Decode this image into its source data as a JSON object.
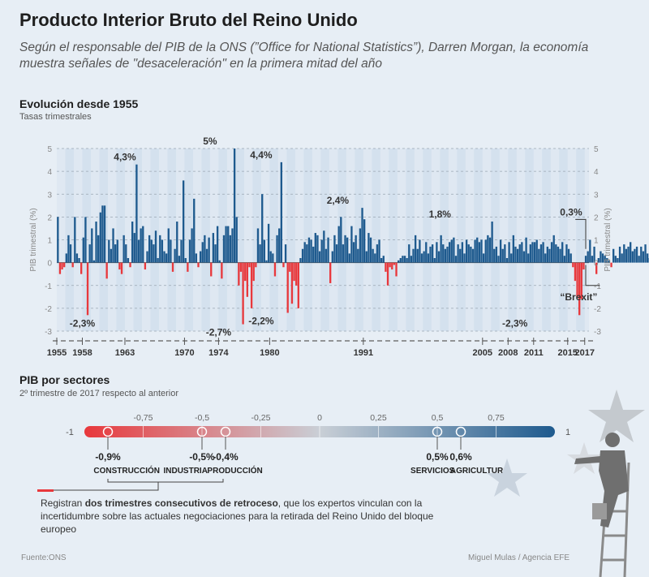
{
  "header": {
    "title": "Producto Interior Bruto del Reino Unido",
    "subtitle": "Según el responsable del PIB de la ONS (”Office for National Statistics”), Darren Morgan, la economía muestra señales de \"desaceleración\" en la primera mitad del año"
  },
  "section1": {
    "title": "Evolución desde 1955",
    "subtitle": "Tasas trimestrales"
  },
  "section2": {
    "title": "PIB por sectores",
    "subtitle": "2º trimestre de 2017 respecto al anterior"
  },
  "note": {
    "pre": "Registran ",
    "bold": "dos trimestres consecutivos de retroceso",
    "post": ", que los expertos vinculan con la incertidumbre sobre las actuales negociaciones para la retirada del Reino Unido del bloque europeo"
  },
  "footer": {
    "source": "Fuente:ONS",
    "credit": "Miguel Mulas / Agencia EFE"
  },
  "colors": {
    "positive": "#1e5a8e",
    "negative": "#e8383c",
    "background": "#e7eef5"
  },
  "chart_data": [
    {
      "type": "bar",
      "title": "Evolución desde 1955",
      "subtitle": "Tasas trimestrales",
      "ylabel": "PIB trimestral (%)",
      "ylim": [
        -3,
        5
      ],
      "yticks": [
        -3,
        -2,
        -1,
        0,
        1,
        2,
        3,
        4,
        5
      ],
      "xrange": [
        1955,
        2017.5
      ],
      "xticks": [
        1955,
        1958,
        1963,
        1970,
        1974,
        1980,
        1991,
        2005,
        2008,
        2011,
        2015,
        2017
      ],
      "quarters_start": 1955,
      "values": [
        2.0,
        -0.5,
        -0.3,
        -0.2,
        0.4,
        1.2,
        0.8,
        -0.2,
        2.0,
        0.4,
        0.2,
        -0.5,
        1.1,
        2.0,
        -2.3,
        0.8,
        1.5,
        0.1,
        1.8,
        1.2,
        2.2,
        2.5,
        2.5,
        -0.7,
        1.0,
        0.6,
        1.5,
        0.8,
        1.0,
        -0.3,
        -0.5,
        1.2,
        0.8,
        0.2,
        -0.2,
        1.8,
        1.3,
        4.3,
        1.0,
        1.5,
        1.6,
        -0.3,
        0.5,
        1.2,
        1.0,
        0.8,
        1.4,
        0.2,
        1.2,
        1.0,
        0.5,
        0.4,
        1.5,
        1.0,
        -0.4,
        0.6,
        1.8,
        0.3,
        1.0,
        3.6,
        0.2,
        -0.4,
        1.0,
        1.5,
        2.8,
        0.4,
        -0.2,
        0.5,
        0.9,
        1.2,
        0.6,
        1.1,
        -0.6,
        1.3,
        0.8,
        1.6,
        0.1,
        -0.7,
        1.2,
        1.6,
        1.6,
        1.2,
        1.5,
        5.0,
        2.0,
        -1.0,
        -0.4,
        -2.7,
        -0.8,
        -1.5,
        -0.2,
        -2.0,
        -0.8,
        -0.2,
        1.5,
        0.8,
        3.0,
        1.0,
        0.1,
        1.7,
        0.5,
        0.4,
        -0.6,
        1.2,
        1.5,
        4.4,
        -0.2,
        0.8,
        -2.2,
        -0.4,
        -1.8,
        -0.8,
        -1.0,
        -2.0,
        0.2,
        0.6,
        0.9,
        0.8,
        1.1,
        1.0,
        0.7,
        1.3,
        1.2,
        0.5,
        1.0,
        1.4,
        0.6,
        1.1,
        -0.9,
        0.5,
        1.2,
        0.8,
        1.6,
        2.0,
        0.8,
        1.2,
        1.1,
        0.4,
        1.6,
        0.9,
        1.2,
        0.6,
        1.5,
        2.4,
        1.9,
        0.5,
        1.3,
        1.1,
        0.6,
        0.4,
        0.8,
        1.0,
        0.2,
        0.3,
        -0.4,
        -1.0,
        -0.2,
        -0.3,
        -0.1,
        -0.6,
        0.1,
        0.2,
        0.3,
        0.3,
        0.2,
        0.8,
        0.3,
        0.6,
        1.2,
        0.6,
        1.0,
        0.4,
        0.5,
        0.9,
        0.4,
        0.7,
        0.8,
        0.2,
        0.9,
        0.5,
        1.2,
        0.8,
        0.6,
        0.7,
        0.9,
        1.0,
        1.1,
        0.3,
        0.8,
        0.6,
        0.9,
        0.4,
        1.0,
        0.8,
        0.7,
        0.6,
        1.0,
        1.1,
        0.9,
        1.0,
        0.4,
        1.0,
        1.2,
        1.1,
        1.8,
        0.6,
        0.7,
        0.3,
        1.0,
        0.6,
        0.8,
        0.2,
        0.9,
        0.4,
        1.2,
        0.7,
        0.6,
        0.8,
        0.9,
        0.5,
        1.1,
        0.4,
        0.8,
        0.9,
        0.9,
        1.0,
        0.6,
        0.8,
        0.9,
        0.4,
        0.7,
        0.6,
        0.9,
        1.2,
        0.8,
        0.7,
        0.6,
        0.9,
        0.3,
        0.8,
        0.6,
        0.4,
        -0.2,
        -0.8,
        -1.5,
        -2.3,
        -1.6,
        -0.3,
        0.3,
        0.5,
        1.0,
        0.3,
        0.7,
        -0.5,
        0.2,
        0.5,
        0.4,
        0.3,
        0.2,
        0.1,
        -0.2,
        0.6,
        0.3,
        0.2,
        0.7,
        0.4,
        0.8,
        0.6,
        0.7,
        0.9,
        0.5,
        0.6,
        0.7,
        0.3,
        0.7,
        0.5,
        0.8,
        0.4,
        0.2,
        0.6,
        0.4,
        0.2,
        0.6,
        0.7,
        0.3,
        0.3
      ]
    },
    {
      "type": "scale",
      "title": "PIB por sectores",
      "subtitle": "2º trimestre de 2017 respecto al anterior",
      "range": [
        -1,
        1
      ],
      "end_labels": [
        "-1",
        "1"
      ],
      "ticks": [
        {
          "value": -0.75,
          "label": "-0,75"
        },
        {
          "value": -0.5,
          "label": "-0,5"
        },
        {
          "value": -0.25,
          "label": "-0,25"
        },
        {
          "value": 0,
          "label": "0"
        },
        {
          "value": 0.25,
          "label": "0,25"
        },
        {
          "value": 0.5,
          "label": "0,5"
        },
        {
          "value": 0.75,
          "label": "0,75"
        }
      ],
      "sectors": [
        {
          "name": "CONSTRUCCIÓN",
          "value": -0.9,
          "label": "-0,9%"
        },
        {
          "name": "INDUSTRIA",
          "value": -0.5,
          "label": "-0,5%"
        },
        {
          "name": "PRODUCCIÓN",
          "value": -0.4,
          "label": "-0,4%"
        },
        {
          "name": "SERVICIOS",
          "value": 0.5,
          "label": "0,5%"
        },
        {
          "name": "AGRICULTURA",
          "value": 0.6,
          "label": "0,6%"
        }
      ]
    }
  ],
  "annotations": [
    {
      "year": 1958,
      "value": -2.3,
      "label": "-2,3%",
      "pos": "below"
    },
    {
      "year": 1963,
      "value": 4.3,
      "label": "4,3%",
      "pos": "above"
    },
    {
      "year": 1973,
      "value": 5.0,
      "label": "5%",
      "pos": "above"
    },
    {
      "year": 1974,
      "value": -2.7,
      "label": "-2,7%",
      "pos": "below"
    },
    {
      "year": 1979,
      "value": 4.4,
      "label": "4,4%",
      "pos": "above"
    },
    {
      "year": 1979,
      "value": -2.2,
      "label": "-2,2%",
      "pos": "below"
    },
    {
      "year": 1988,
      "value": 2.4,
      "label": "2,4%",
      "pos": "above"
    },
    {
      "year": 2000,
      "value": 1.8,
      "label": "1,8%",
      "pos": "above"
    },
    {
      "year": 2008.8,
      "value": -2.3,
      "label": "-2,3%",
      "pos": "below"
    },
    {
      "year": 2016.5,
      "value": 0.3,
      "label": "0,3%",
      "pos": "callout"
    },
    {
      "year": 2016.3,
      "value": -1.5,
      "label": "“Brexit”",
      "pos": "brexit"
    }
  ]
}
